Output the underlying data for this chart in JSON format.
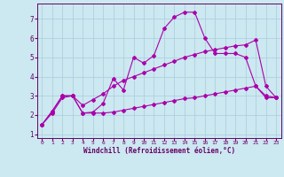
{
  "xlabel": "Windchill (Refroidissement éolien,°C)",
  "xlim": [
    -0.5,
    23.5
  ],
  "ylim": [
    0.8,
    7.8
  ],
  "xticks": [
    0,
    1,
    2,
    3,
    4,
    5,
    6,
    7,
    8,
    9,
    10,
    11,
    12,
    13,
    14,
    15,
    16,
    17,
    18,
    19,
    20,
    21,
    22,
    23
  ],
  "yticks": [
    1,
    2,
    3,
    4,
    5,
    6,
    7
  ],
  "background_color": "#cce8f0",
  "grid_color": "#aaccdd",
  "line_color": "#aa00aa",
  "spine_color": "#660066",
  "label_color": "#660066",
  "line1_x": [
    0,
    1,
    2,
    3,
    4,
    5,
    6,
    7,
    8,
    9,
    10,
    11,
    12,
    13,
    14,
    15,
    16,
    17,
    18,
    19,
    20,
    21,
    22,
    23
  ],
  "line1_y": [
    1.5,
    2.2,
    3.0,
    3.0,
    2.1,
    2.15,
    2.6,
    3.9,
    3.3,
    5.0,
    4.7,
    5.1,
    6.5,
    7.1,
    7.35,
    7.35,
    6.0,
    5.2,
    5.2,
    5.2,
    5.0,
    3.5,
    3.0,
    2.9
  ],
  "line2_x": [
    0,
    1,
    2,
    3,
    4,
    5,
    6,
    7,
    8,
    9,
    10,
    11,
    12,
    13,
    14,
    15,
    16,
    17,
    18,
    19,
    20,
    21,
    22,
    23
  ],
  "line2_y": [
    1.5,
    2.2,
    3.0,
    3.0,
    2.5,
    2.8,
    3.1,
    3.5,
    3.8,
    4.0,
    4.2,
    4.4,
    4.6,
    4.8,
    5.0,
    5.15,
    5.3,
    5.4,
    5.5,
    5.6,
    5.65,
    5.9,
    3.5,
    2.9
  ],
  "line3_x": [
    0,
    1,
    2,
    3,
    4,
    5,
    6,
    7,
    8,
    9,
    10,
    11,
    12,
    13,
    14,
    15,
    16,
    17,
    18,
    19,
    20,
    21,
    22,
    23
  ],
  "line3_y": [
    1.5,
    2.1,
    2.9,
    3.0,
    2.1,
    2.1,
    2.1,
    2.15,
    2.25,
    2.35,
    2.45,
    2.55,
    2.65,
    2.75,
    2.85,
    2.9,
    3.0,
    3.1,
    3.2,
    3.3,
    3.4,
    3.5,
    2.9,
    2.9
  ],
  "marker": "D",
  "markersize": 2.0,
  "linewidth": 0.8
}
